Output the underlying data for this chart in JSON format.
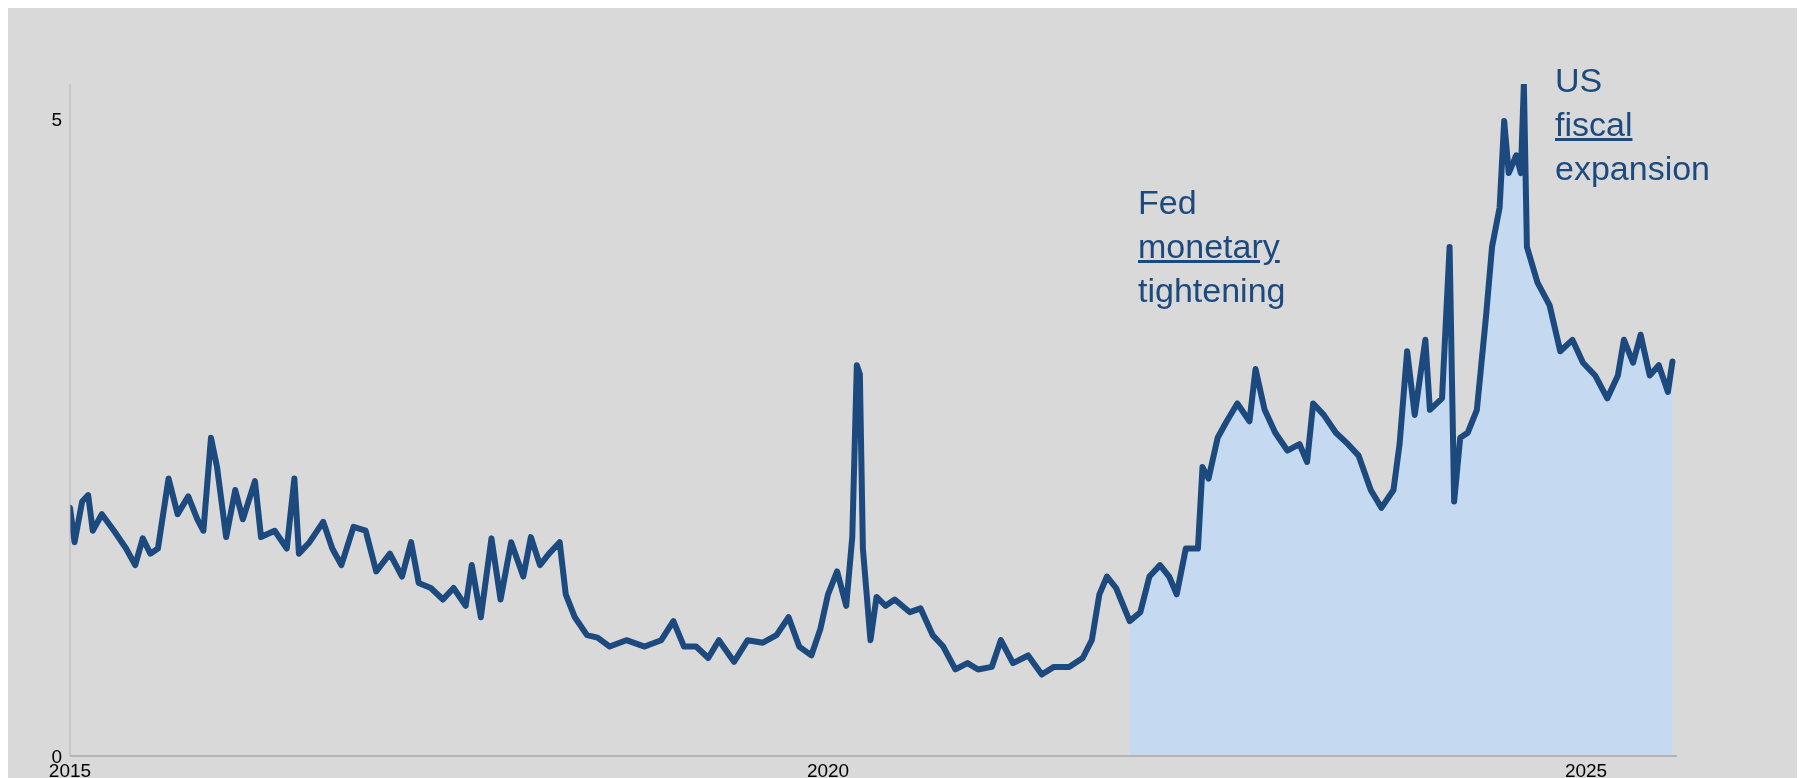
{
  "chart_data": {
    "type": "line",
    "xlim": [
      2015,
      2025.6
    ],
    "xticks": [
      2015,
      2020,
      2025
    ],
    "ylim": [
      0,
      5.28
    ],
    "yticks": [
      0,
      5
    ],
    "grid": false,
    "marker": "none",
    "line_style": "solid",
    "annotations": [
      "Fed monetary tightening",
      "US fiscal expansion"
    ],
    "series": [
      {
        "type": "area",
        "color": "#c5daf1",
        "x": [
          2021.99,
          2022.06,
          2022.12,
          2022.19,
          2022.25,
          2022.3,
          2022.36,
          2022.44,
          2022.47,
          2022.51,
          2022.57,
          2022.63,
          2022.7,
          2022.78,
          2022.82,
          2022.88,
          2022.95,
          2023.03,
          2023.11,
          2023.16,
          2023.2,
          2023.27,
          2023.35,
          2023.43,
          2023.5,
          2023.58,
          2023.65,
          2023.73,
          2023.77,
          2023.82,
          2023.87,
          2023.94,
          2023.97,
          2024.05,
          2024.1,
          2024.13,
          2024.17,
          2024.22,
          2024.28,
          2024.34,
          2024.38,
          2024.43,
          2024.46,
          2024.49,
          2024.54,
          2024.57,
          2024.59,
          2024.61,
          2024.68,
          2024.76,
          2024.83,
          2024.91,
          2024.98,
          2025.06,
          2025.14,
          2025.21,
          2025.25,
          2025.31,
          2025.36,
          2025.42,
          2025.48,
          2025.54,
          2025.57
        ],
        "values": [
          1.06,
          1.13,
          1.41,
          1.5,
          1.41,
          1.27,
          1.63,
          1.63,
          2.27,
          2.18,
          2.5,
          2.63,
          2.77,
          2.63,
          3.04,
          2.72,
          2.54,
          2.4,
          2.45,
          2.31,
          2.77,
          2.68,
          2.54,
          2.45,
          2.36,
          2.09,
          1.95,
          2.09,
          2.45,
          3.18,
          2.68,
          3.27,
          2.72,
          2.81,
          4.0,
          2.0,
          2.5,
          2.54,
          2.72,
          3.45,
          4.0,
          4.31,
          4.99,
          4.58,
          4.72,
          4.58,
          5.28,
          4.0,
          3.72,
          3.54,
          3.18,
          3.27,
          3.09,
          2.99,
          2.81,
          2.99,
          3.27,
          3.09,
          3.31,
          2.99,
          3.07,
          2.86,
          3.1
        ]
      },
      {
        "color": "#1c4a7e",
        "x": [
          2015.0,
          2015.03,
          2015.08,
          2015.12,
          2015.15,
          2015.21,
          2015.29,
          2015.37,
          2015.43,
          2015.48,
          2015.53,
          2015.58,
          2015.65,
          2015.71,
          2015.78,
          2015.84,
          2015.88,
          2015.93,
          2015.97,
          2016.03,
          2016.09,
          2016.14,
          2016.22,
          2016.26,
          2016.35,
          2016.43,
          2016.48,
          2016.51,
          2016.58,
          2016.67,
          2016.73,
          2016.79,
          2016.87,
          2016.95,
          2017.02,
          2017.11,
          2017.19,
          2017.25,
          2017.3,
          2017.38,
          2017.46,
          2017.53,
          2017.61,
          2017.65,
          2017.71,
          2017.78,
          2017.84,
          2017.91,
          2017.99,
          2018.04,
          2018.1,
          2018.16,
          2018.23,
          2018.27,
          2018.33,
          2018.41,
          2018.48,
          2018.56,
          2018.67,
          2018.79,
          2018.9,
          2018.98,
          2019.05,
          2019.13,
          2019.21,
          2019.28,
          2019.38,
          2019.47,
          2019.57,
          2019.66,
          2019.74,
          2019.81,
          2019.89,
          2019.95,
          2020.0,
          2020.06,
          2020.12,
          2020.16,
          2020.19,
          2020.21,
          2020.23,
          2020.28,
          2020.32,
          2020.38,
          2020.44,
          2020.54,
          2020.61,
          2020.69,
          2020.76,
          2020.84,
          2020.92,
          2020.99,
          2021.08,
          2021.14,
          2021.22,
          2021.32,
          2021.41,
          2021.49,
          2021.59,
          2021.68,
          2021.74,
          2021.79,
          2021.84,
          2021.9,
          2021.99,
          2022.06,
          2022.12,
          2022.19,
          2022.25,
          2022.3,
          2022.36,
          2022.44,
          2022.47,
          2022.51,
          2022.57,
          2022.63,
          2022.7,
          2022.78,
          2022.82,
          2022.88,
          2022.95,
          2023.03,
          2023.11,
          2023.16,
          2023.2,
          2023.27,
          2023.35,
          2023.43,
          2023.5,
          2023.58,
          2023.65,
          2023.73,
          2023.77,
          2023.82,
          2023.87,
          2023.94,
          2023.97,
          2024.05,
          2024.1,
          2024.13,
          2024.17,
          2024.22,
          2024.28,
          2024.34,
          2024.38,
          2024.43,
          2024.46,
          2024.49,
          2024.54,
          2024.57,
          2024.59,
          2024.61,
          2024.68,
          2024.76,
          2024.83,
          2024.91,
          2024.98,
          2025.06,
          2025.14,
          2025.21,
          2025.25,
          2025.31,
          2025.36,
          2025.42,
          2025.48,
          2025.54,
          2025.57
        ],
        "values": [
          1.95,
          1.68,
          2.0,
          2.05,
          1.77,
          1.9,
          1.77,
          1.63,
          1.5,
          1.71,
          1.59,
          1.63,
          2.18,
          1.9,
          2.04,
          1.86,
          1.77,
          2.5,
          2.27,
          1.72,
          2.09,
          1.86,
          2.16,
          1.72,
          1.77,
          1.63,
          2.18,
          1.59,
          1.68,
          1.84,
          1.63,
          1.5,
          1.8,
          1.77,
          1.45,
          1.59,
          1.41,
          1.68,
          1.36,
          1.32,
          1.23,
          1.32,
          1.18,
          1.5,
          1.09,
          1.71,
          1.23,
          1.68,
          1.41,
          1.72,
          1.5,
          1.59,
          1.68,
          1.27,
          1.09,
          0.95,
          0.93,
          0.86,
          0.91,
          0.86,
          0.91,
          1.06,
          0.86,
          0.86,
          0.77,
          0.91,
          0.74,
          0.91,
          0.89,
          0.95,
          1.09,
          0.86,
          0.79,
          1.0,
          1.27,
          1.45,
          1.18,
          1.72,
          3.07,
          3.0,
          1.63,
          0.91,
          1.25,
          1.18,
          1.23,
          1.13,
          1.16,
          0.95,
          0.86,
          0.68,
          0.73,
          0.68,
          0.7,
          0.91,
          0.73,
          0.79,
          0.64,
          0.7,
          0.7,
          0.77,
          0.91,
          1.27,
          1.41,
          1.32,
          1.06,
          1.13,
          1.41,
          1.5,
          1.41,
          1.27,
          1.63,
          1.63,
          2.27,
          2.18,
          2.5,
          2.63,
          2.77,
          2.63,
          3.04,
          2.72,
          2.54,
          2.4,
          2.45,
          2.31,
          2.77,
          2.68,
          2.54,
          2.45,
          2.36,
          2.09,
          1.95,
          2.09,
          2.45,
          3.18,
          2.68,
          3.27,
          2.72,
          2.81,
          4.0,
          2.0,
          2.5,
          2.54,
          2.72,
          3.45,
          4.0,
          4.31,
          4.99,
          4.58,
          4.72,
          4.58,
          5.28,
          4.0,
          3.72,
          3.54,
          3.18,
          3.27,
          3.09,
          2.99,
          2.81,
          2.99,
          3.27,
          3.09,
          3.31,
          2.99,
          3.07,
          2.86,
          3.1
        ]
      }
    ]
  }
}
